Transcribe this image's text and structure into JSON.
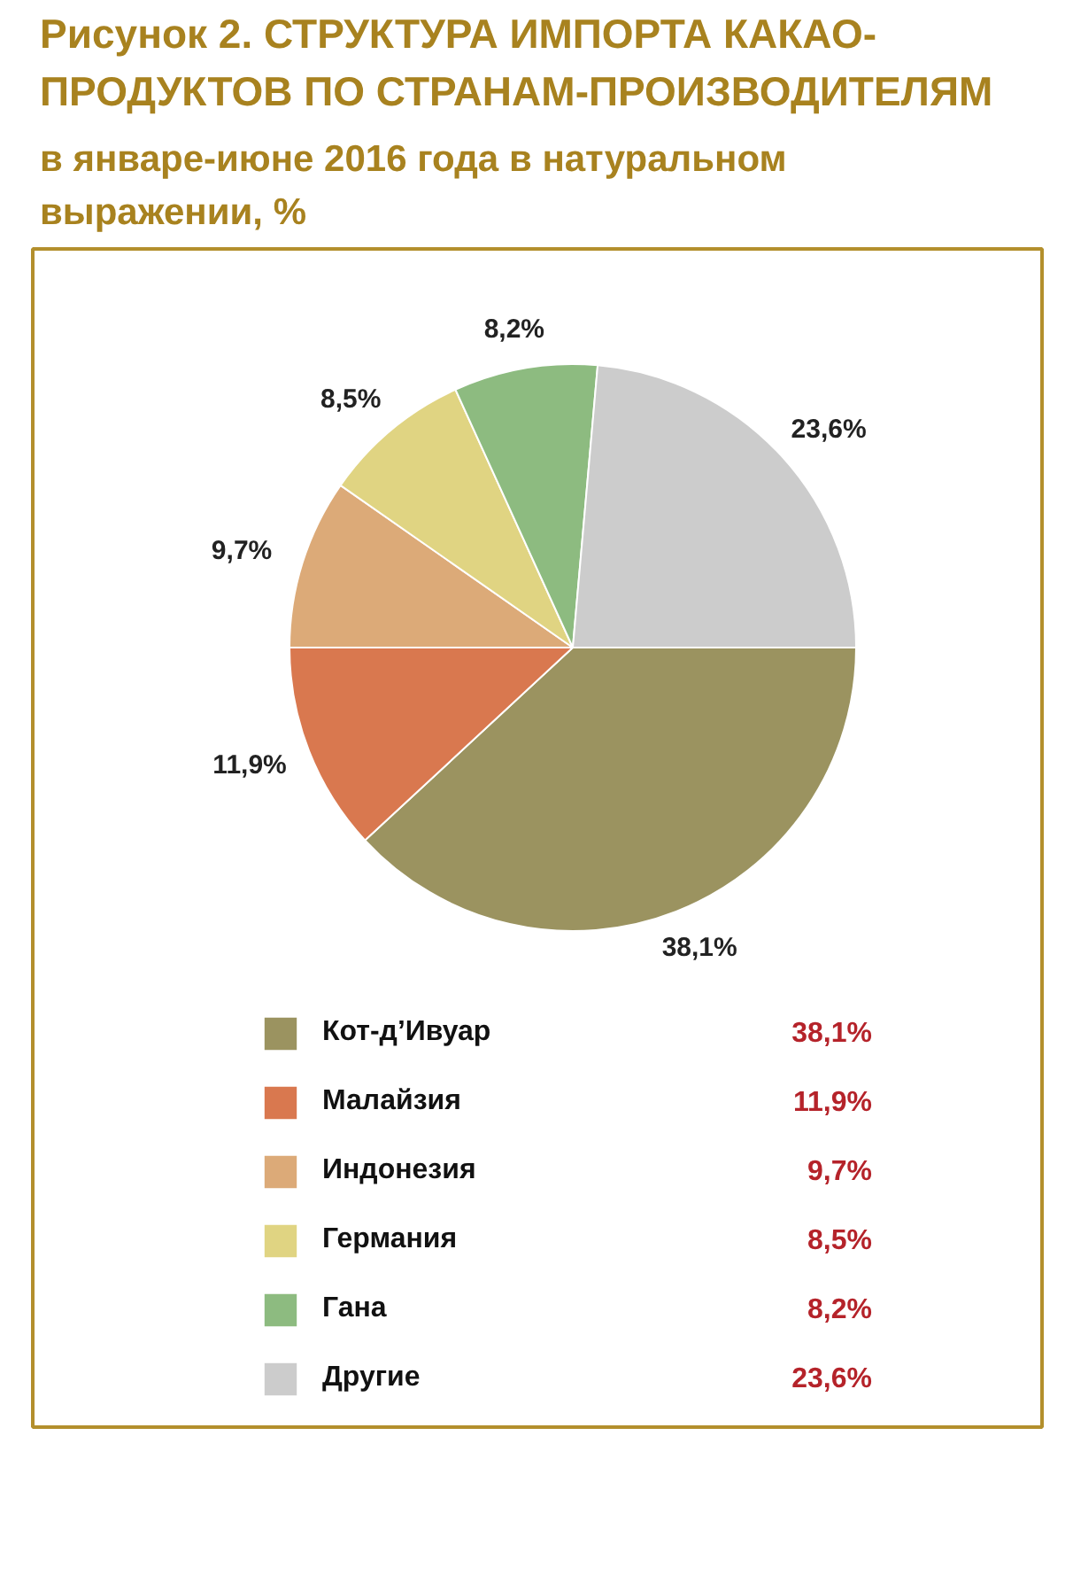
{
  "chart_data": {
    "type": "pie",
    "title": "Рисунок 2. СТРУКТУРА ИМПОРТА КАКАО-ПРОДУКТОВ ПО СТРАНАМ-ПРОИЗВОДИТЕЛЯМ",
    "subtitle": "в январе-июне 2016 года в натуральном выражении, %",
    "categories": [
      "Кот-д’Ивуар",
      "Малайзия",
      "Индонезия",
      "Германия",
      "Гана",
      "Другие"
    ],
    "values": [
      38.1,
      11.9,
      9.7,
      8.5,
      8.2,
      23.6
    ],
    "colors": [
      "#9b9360",
      "#d9784f",
      "#dcaa78",
      "#e0d482",
      "#8dbb80",
      "#cccccc"
    ],
    "value_labels": [
      "38,1%",
      "11,9%",
      "9,7%",
      "8,5%",
      "8,2%",
      "23,6%"
    ],
    "legend": "bottom"
  }
}
